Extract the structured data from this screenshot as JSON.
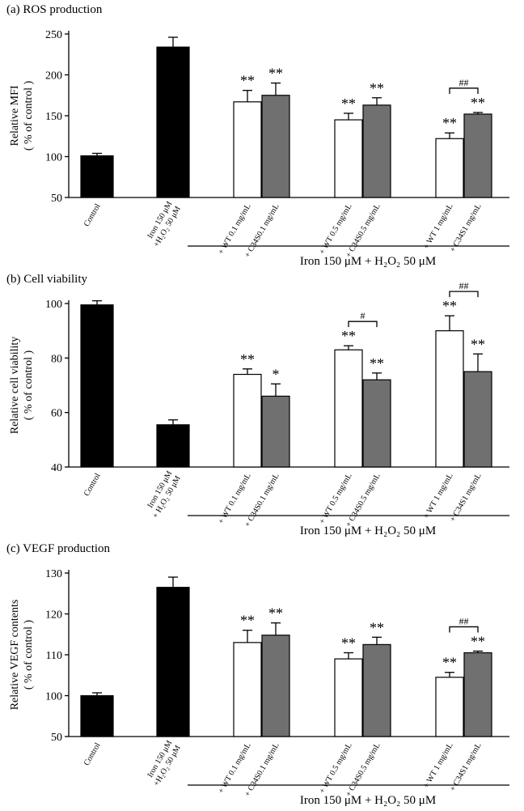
{
  "chart_data": [
    {
      "type": "bar",
      "title": "(a)  ROS production",
      "ylabel": [
        "Relative MFI",
        "( % of control )"
      ],
      "categories": [
        "Control",
        "Iron 150 μM\n+H₂O₂ 50 μM",
        "+ WT 0.1 mg/mL",
        "+ C34S0.1 mg/mL",
        "+ WT 0.5 mg/mL",
        "+ C34S0.5 mg/mL",
        "+ WT 1 mg/mL",
        "+ C34S1 mg/mL"
      ],
      "values": [
        101,
        234,
        167,
        175,
        145,
        163,
        122,
        152
      ],
      "errors": [
        3,
        12,
        14,
        15,
        8,
        9,
        7,
        2
      ],
      "colors": [
        "#000000",
        "#000000",
        "#ffffff",
        "#707070",
        "#ffffff",
        "#707070",
        "#ffffff",
        "#707070"
      ],
      "significance": [
        null,
        null,
        "**",
        "**",
        "**",
        "**",
        "**",
        "**"
      ],
      "comparisons": [
        {
          "from": 6,
          "to": 7,
          "label": "##"
        }
      ],
      "group_label": "Iron 150 μM + H₂O₂ 50 μM",
      "y_scale": "linear",
      "ylim": [
        50,
        250
      ],
      "yticks": [
        50,
        100,
        150,
        200,
        250
      ]
    },
    {
      "type": "bar",
      "title": "(b)  Cell viability",
      "ylabel": [
        "Relative cell viability",
        "( % of control )"
      ],
      "categories": [
        "Control",
        "Iron 150 μM\n+ H₂O₂ 50 μM",
        "+ WT 0.1 mg/mL",
        "+ C34S0.1 mg/mL",
        "+ WT 0.5 mg/mL",
        "+ C34S0.5 mg/mL",
        "+ WT 1 mg/mL",
        "+ C34S1 mg/mL"
      ],
      "values": [
        99.5,
        55.5,
        74,
        66,
        83,
        72,
        90,
        75
      ],
      "errors": [
        1.5,
        1.8,
        2,
        4.5,
        1.5,
        2.5,
        5.5,
        6.5
      ],
      "colors": [
        "#000000",
        "#000000",
        "#ffffff",
        "#707070",
        "#ffffff",
        "#707070",
        "#ffffff",
        "#707070"
      ],
      "significance": [
        null,
        null,
        "**",
        "*",
        "**",
        "**",
        "**",
        "**"
      ],
      "comparisons": [
        {
          "from": 4,
          "to": 5,
          "label": "#"
        },
        {
          "from": 6,
          "to": 7,
          "label": "##"
        }
      ],
      "group_label": "Iron 150 μM + H₂O₂ 50 μM",
      "y_scale": "linear",
      "ylim": [
        40,
        100
      ],
      "yticks": [
        40,
        60,
        80,
        100
      ]
    },
    {
      "type": "bar",
      "title": "(c)  VEGF production",
      "ylabel": [
        "Relative VEGF contents",
        "( % of control )"
      ],
      "categories": [
        "Control",
        "Iron 150 μM\n+H₂O₂ 50 μM",
        "+ WT 0.1 mg/mL",
        "+ C34S0.1 mg/mL",
        "+ WT 0.5 mg/mL",
        "+ C34S0.5 mg/mL",
        "+ WT 1 mg/mL",
        "+ C34S1 mg/mL"
      ],
      "values": [
        100,
        126.5,
        113,
        114.8,
        109,
        112.5,
        104.5,
        110.5
      ],
      "errors": [
        0.7,
        2.5,
        3,
        3,
        1.5,
        1.8,
        1.2,
        0.4
      ],
      "colors": [
        "#000000",
        "#000000",
        "#ffffff",
        "#707070",
        "#ffffff",
        "#707070",
        "#ffffff",
        "#707070"
      ],
      "significance": [
        null,
        null,
        "**",
        "**",
        "**",
        "**",
        "**",
        "**"
      ],
      "comparisons": [
        {
          "from": 6,
          "to": 7,
          "label": "##"
        }
      ],
      "group_label": "Iron 150 μM + H₂O₂ 50 μM",
      "y_scale": "broken",
      "ylim": [
        50,
        130
      ],
      "yticks": [
        50,
        100,
        110,
        120,
        130
      ]
    }
  ]
}
